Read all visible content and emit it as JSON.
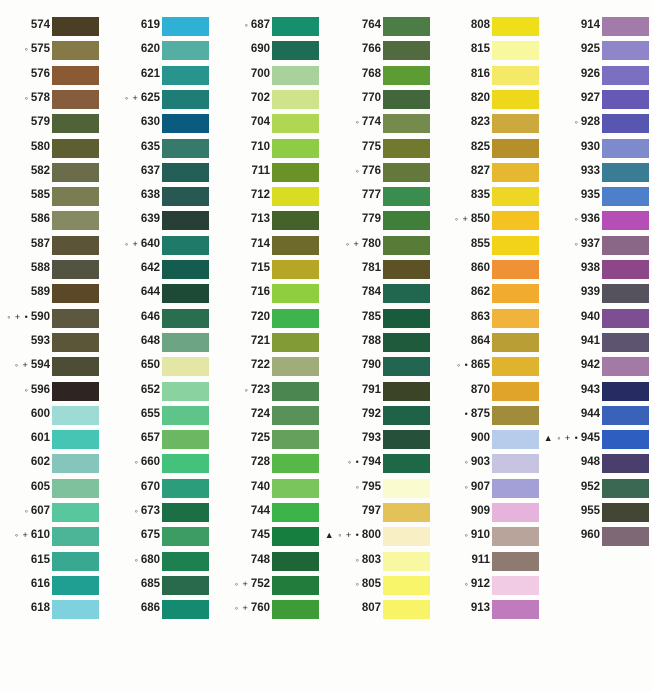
{
  "columns": [
    {
      "entries": [
        {
          "prefix": "",
          "code": "574",
          "color": "#4a3f25"
        },
        {
          "prefix": "◦",
          "code": "575",
          "color": "#857a47"
        },
        {
          "prefix": "",
          "code": "576",
          "color": "#8a5a35"
        },
        {
          "prefix": "◦",
          "code": "578",
          "color": "#855d3d"
        },
        {
          "prefix": "",
          "code": "579",
          "color": "#4f6238"
        },
        {
          "prefix": "",
          "code": "580",
          "color": "#5d5f30"
        },
        {
          "prefix": "",
          "code": "582",
          "color": "#6b6c4a"
        },
        {
          "prefix": "",
          "code": "585",
          "color": "#7a7d52"
        },
        {
          "prefix": "",
          "code": "586",
          "color": "#858a62"
        },
        {
          "prefix": "",
          "code": "587",
          "color": "#5c5437"
        },
        {
          "prefix": "",
          "code": "588",
          "color": "#525340"
        },
        {
          "prefix": "",
          "code": "589",
          "color": "#5a4826"
        },
        {
          "prefix": "◦ + •",
          "code": "590",
          "color": "#5c573f"
        },
        {
          "prefix": "",
          "code": "593",
          "color": "#5c5639"
        },
        {
          "prefix": "◦ +",
          "code": "594",
          "color": "#4d4c35"
        },
        {
          "prefix": "◦",
          "code": "596",
          "color": "#2e2522"
        },
        {
          "prefix": "",
          "code": "600",
          "color": "#9edbd5"
        },
        {
          "prefix": "",
          "code": "601",
          "color": "#46c4b4"
        },
        {
          "prefix": "",
          "code": "602",
          "color": "#86c5bc"
        },
        {
          "prefix": "",
          "code": "605",
          "color": "#7ec19c"
        },
        {
          "prefix": "◦",
          "code": "607",
          "color": "#58c79e"
        },
        {
          "prefix": "◦ +",
          "code": "610",
          "color": "#4db597"
        },
        {
          "prefix": "",
          "code": "615",
          "color": "#38a890"
        },
        {
          "prefix": "",
          "code": "616",
          "color": "#1f9f91"
        },
        {
          "prefix": "",
          "code": "618",
          "color": "#7ed1dd"
        }
      ]
    },
    {
      "entries": [
        {
          "prefix": "",
          "code": "619",
          "color": "#2fb0d5"
        },
        {
          "prefix": "",
          "code": "620",
          "color": "#54aea3"
        },
        {
          "prefix": "",
          "code": "621",
          "color": "#27958e"
        },
        {
          "prefix": "◦ +",
          "code": "625",
          "color": "#1f7d78"
        },
        {
          "prefix": "",
          "code": "630",
          "color": "#0b5b80"
        },
        {
          "prefix": "",
          "code": "635",
          "color": "#367a6c"
        },
        {
          "prefix": "",
          "code": "637",
          "color": "#245f57"
        },
        {
          "prefix": "",
          "code": "638",
          "color": "#275851"
        },
        {
          "prefix": "",
          "code": "639",
          "color": "#273f37"
        },
        {
          "prefix": "◦ +",
          "code": "640",
          "color": "#1f7a6a"
        },
        {
          "prefix": "",
          "code": "642",
          "color": "#145c4e"
        },
        {
          "prefix": "",
          "code": "644",
          "color": "#1c4a37"
        },
        {
          "prefix": "",
          "code": "646",
          "color": "#2a6e50"
        },
        {
          "prefix": "",
          "code": "648",
          "color": "#6da483"
        },
        {
          "prefix": "",
          "code": "650",
          "color": "#e3e6a5"
        },
        {
          "prefix": "",
          "code": "652",
          "color": "#8ad3a1"
        },
        {
          "prefix": "",
          "code": "655",
          "color": "#5ec489"
        },
        {
          "prefix": "",
          "code": "657",
          "color": "#6cb762"
        },
        {
          "prefix": "◦",
          "code": "660",
          "color": "#44c27c"
        },
        {
          "prefix": "",
          "code": "670",
          "color": "#2c9d7a"
        },
        {
          "prefix": "◦",
          "code": "673",
          "color": "#1c6e45"
        },
        {
          "prefix": "",
          "code": "675",
          "color": "#3d9c63"
        },
        {
          "prefix": "◦",
          "code": "680",
          "color": "#1d8050"
        },
        {
          "prefix": "",
          "code": "685",
          "color": "#296a4c"
        },
        {
          "prefix": "",
          "code": "686",
          "color": "#148a70"
        }
      ]
    },
    {
      "entries": [
        {
          "prefix": "◦",
          "code": "687",
          "color": "#168f6d"
        },
        {
          "prefix": "",
          "code": "690",
          "color": "#1e6b56"
        },
        {
          "prefix": "",
          "code": "700",
          "color": "#a8d19b"
        },
        {
          "prefix": "",
          "code": "702",
          "color": "#cfe38b"
        },
        {
          "prefix": "",
          "code": "704",
          "color": "#afd753"
        },
        {
          "prefix": "",
          "code": "710",
          "color": "#8fcc45"
        },
        {
          "prefix": "",
          "code": "711",
          "color": "#6a9327"
        },
        {
          "prefix": "",
          "code": "712",
          "color": "#d9dc22"
        },
        {
          "prefix": "",
          "code": "713",
          "color": "#45622a"
        },
        {
          "prefix": "",
          "code": "714",
          "color": "#6e6a2c"
        },
        {
          "prefix": "",
          "code": "715",
          "color": "#b5a628"
        },
        {
          "prefix": "",
          "code": "716",
          "color": "#8fcf3f"
        },
        {
          "prefix": "",
          "code": "720",
          "color": "#3eb34e"
        },
        {
          "prefix": "",
          "code": "721",
          "color": "#839b36"
        },
        {
          "prefix": "",
          "code": "722",
          "color": "#a0ad7b"
        },
        {
          "prefix": "◦",
          "code": "723",
          "color": "#4b8550"
        },
        {
          "prefix": "",
          "code": "724",
          "color": "#58925a"
        },
        {
          "prefix": "",
          "code": "725",
          "color": "#65a15d"
        },
        {
          "prefix": "",
          "code": "728",
          "color": "#57b748"
        },
        {
          "prefix": "",
          "code": "740",
          "color": "#7bc65c"
        },
        {
          "prefix": "",
          "code": "744",
          "color": "#3db44a"
        },
        {
          "prefix": "",
          "code": "745",
          "color": "#167f40"
        },
        {
          "prefix": "",
          "code": "748",
          "color": "#1f6637"
        },
        {
          "prefix": "◦ +",
          "code": "752",
          "color": "#227c3c"
        },
        {
          "prefix": "◦ +",
          "code": "760",
          "color": "#3e9c38"
        }
      ]
    },
    {
      "entries": [
        {
          "prefix": "",
          "code": "764",
          "color": "#4d7d46"
        },
        {
          "prefix": "",
          "code": "766",
          "color": "#526a3f"
        },
        {
          "prefix": "",
          "code": "768",
          "color": "#5d9b33"
        },
        {
          "prefix": "",
          "code": "770",
          "color": "#41673b"
        },
        {
          "prefix": "◦",
          "code": "774",
          "color": "#758a4d"
        },
        {
          "prefix": "",
          "code": "775",
          "color": "#70792e"
        },
        {
          "prefix": "◦",
          "code": "776",
          "color": "#63783a"
        },
        {
          "prefix": "",
          "code": "777",
          "color": "#3b8d4f"
        },
        {
          "prefix": "",
          "code": "779",
          "color": "#3f7f3a"
        },
        {
          "prefix": "◦ +",
          "code": "780",
          "color": "#587b37"
        },
        {
          "prefix": "",
          "code": "781",
          "color": "#5c5226"
        },
        {
          "prefix": "",
          "code": "784",
          "color": "#21664f"
        },
        {
          "prefix": "",
          "code": "785",
          "color": "#185c3d"
        },
        {
          "prefix": "",
          "code": "788",
          "color": "#1f5a3c"
        },
        {
          "prefix": "",
          "code": "790",
          "color": "#226652"
        },
        {
          "prefix": "",
          "code": "791",
          "color": "#3c4428"
        },
        {
          "prefix": "",
          "code": "792",
          "color": "#1f6247"
        },
        {
          "prefix": "",
          "code": "793",
          "color": "#27503b"
        },
        {
          "prefix": "◦ •",
          "code": "794",
          "color": "#1f6847"
        },
        {
          "prefix": "◦",
          "code": "795",
          "color": "#fafcd0"
        },
        {
          "prefix": "",
          "code": "797",
          "color": "#e4c25a"
        },
        {
          "prefix": "▲ ◦ + •",
          "code": "800",
          "color": "#f8efc4"
        },
        {
          "prefix": "◦",
          "code": "803",
          "color": "#f9f8a2"
        },
        {
          "prefix": "◦",
          "code": "805",
          "color": "#f8f56a"
        },
        {
          "prefix": "",
          "code": "807",
          "color": "#f7f468"
        }
      ]
    },
    {
      "entries": [
        {
          "prefix": "",
          "code": "808",
          "color": "#efde1a"
        },
        {
          "prefix": "",
          "code": "815",
          "color": "#f8f99f"
        },
        {
          "prefix": "",
          "code": "816",
          "color": "#f5ea68"
        },
        {
          "prefix": "",
          "code": "820",
          "color": "#eed81c"
        },
        {
          "prefix": "",
          "code": "823",
          "color": "#cca93e"
        },
        {
          "prefix": "",
          "code": "825",
          "color": "#b48f2a"
        },
        {
          "prefix": "",
          "code": "827",
          "color": "#e6b830"
        },
        {
          "prefix": "",
          "code": "835",
          "color": "#eed624"
        },
        {
          "prefix": "◦ +",
          "code": "850",
          "color": "#f4c322"
        },
        {
          "prefix": "",
          "code": "855",
          "color": "#f3d21a"
        },
        {
          "prefix": "",
          "code": "860",
          "color": "#ee9235"
        },
        {
          "prefix": "",
          "code": "862",
          "color": "#f1ac2f"
        },
        {
          "prefix": "",
          "code": "863",
          "color": "#f0b43d"
        },
        {
          "prefix": "",
          "code": "864",
          "color": "#b89e35"
        },
        {
          "prefix": "◦ •",
          "code": "865",
          "color": "#dfb32d"
        },
        {
          "prefix": "",
          "code": "870",
          "color": "#e0a42b"
        },
        {
          "prefix": "•",
          "code": "875",
          "color": "#a18c3b"
        },
        {
          "prefix": "",
          "code": "900",
          "color": "#b7ccea"
        },
        {
          "prefix": "◦",
          "code": "903",
          "color": "#c7c4e2"
        },
        {
          "prefix": "◦",
          "code": "907",
          "color": "#a39fd7"
        },
        {
          "prefix": "",
          "code": "909",
          "color": "#e5b3dc"
        },
        {
          "prefix": "◦",
          "code": "910",
          "color": "#b9a49b"
        },
        {
          "prefix": "",
          "code": "911",
          "color": "#8e7a70"
        },
        {
          "prefix": "◦",
          "code": "912",
          "color": "#f1cbe4"
        },
        {
          "prefix": "",
          "code": "913",
          "color": "#c07bbd"
        }
      ]
    },
    {
      "entries": [
        {
          "prefix": "",
          "code": "914",
          "color": "#a37ba8"
        },
        {
          "prefix": "",
          "code": "925",
          "color": "#8f86c9"
        },
        {
          "prefix": "",
          "code": "926",
          "color": "#7a6fc0"
        },
        {
          "prefix": "",
          "code": "927",
          "color": "#6659b5"
        },
        {
          "prefix": "◦",
          "code": "928",
          "color": "#5756b0"
        },
        {
          "prefix": "",
          "code": "930",
          "color": "#7e8acb"
        },
        {
          "prefix": "",
          "code": "933",
          "color": "#3a7c94"
        },
        {
          "prefix": "",
          "code": "935",
          "color": "#4d7fca"
        },
        {
          "prefix": "◦",
          "code": "936",
          "color": "#b54fb6"
        },
        {
          "prefix": "◦",
          "code": "937",
          "color": "#8a6786"
        },
        {
          "prefix": "",
          "code": "938",
          "color": "#8d4688"
        },
        {
          "prefix": "",
          "code": "939",
          "color": "#55525d"
        },
        {
          "prefix": "",
          "code": "940",
          "color": "#7e4e92"
        },
        {
          "prefix": "",
          "code": "941",
          "color": "#5d5470"
        },
        {
          "prefix": "",
          "code": "942",
          "color": "#a27aa5"
        },
        {
          "prefix": "",
          "code": "943",
          "color": "#262c62"
        },
        {
          "prefix": "",
          "code": "944",
          "color": "#3a62b9"
        },
        {
          "prefix": "▲ ◦ + •",
          "code": "945",
          "color": "#2e5ec0"
        },
        {
          "prefix": "",
          "code": "948",
          "color": "#4a3f6c"
        },
        {
          "prefix": "",
          "code": "952",
          "color": "#3b6852"
        },
        {
          "prefix": "",
          "code": "955",
          "color": "#434635"
        },
        {
          "prefix": "",
          "code": "960",
          "color": "#7f6876"
        }
      ]
    }
  ]
}
